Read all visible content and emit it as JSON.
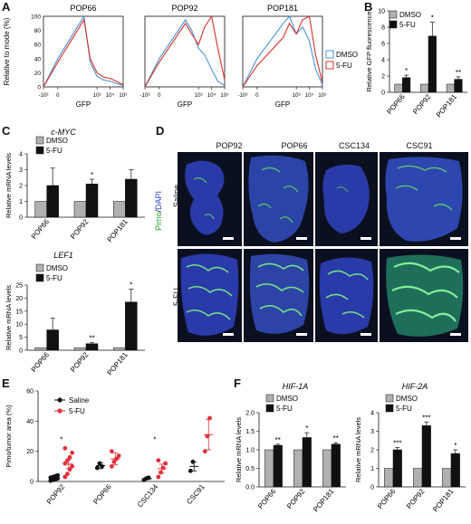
{
  "panels": {
    "A": {
      "letter": "A",
      "ylabel": "Relative to mode (%)",
      "xlabel": "GFP",
      "titles": [
        "POP66",
        "POP92",
        "POP181"
      ],
      "yticks": [
        "0",
        "20",
        "40",
        "60",
        "80",
        "100"
      ],
      "xticks": [
        "-10³",
        "0",
        "10³",
        "10⁴",
        "10⁵"
      ],
      "legend": [
        "DMSO",
        "5-FU"
      ]
    },
    "B": {
      "letter": "B",
      "legend": [
        "DMSO",
        "5-FU"
      ]
    },
    "C": {
      "letter": "C"
    },
    "D": {
      "letter": "D",
      "cols": [
        "POP92",
        "POP66",
        "CSC134",
        "CSC91"
      ],
      "rows": [
        "Saline",
        "5-FU"
      ],
      "side_label_1": "Pimo",
      "side_label_sep": "/",
      "side_label_2": "DAPI"
    },
    "E": {
      "letter": "E",
      "legend": [
        "Saline",
        "5-FU"
      ]
    },
    "F": {
      "letter": "F"
    }
  },
  "colors": {
    "dmso": "#b0b0b0",
    "fu": "#111111",
    "hist_dmso": "#4a90d9",
    "hist_fu": "#d9322b",
    "saline_dot": "#111111",
    "fu_dot": "#e0303c"
  },
  "chart_data": [
    {
      "id": "A",
      "type": "line",
      "title": "",
      "xlabel": "GFP",
      "ylabel": "Relative to mode (%)",
      "ylim": [
        0,
        100
      ],
      "subplots": [
        {
          "title": "POP66",
          "series": [
            {
              "name": "DMSO",
              "x": [
                -1000,
                0,
                100,
                300,
                1000,
                3000,
                10000,
                30000,
                100000
              ],
              "values": [
                0,
                40,
                100,
                35,
                15,
                10,
                8,
                5,
                2
              ]
            },
            {
              "name": "5-FU",
              "x": [
                -1000,
                0,
                100,
                300,
                1000,
                3000,
                10000,
                30000,
                100000
              ],
              "values": [
                0,
                35,
                95,
                40,
                20,
                14,
                12,
                8,
                3
              ]
            }
          ]
        },
        {
          "title": "POP92",
          "series": [
            {
              "name": "DMSO",
              "x": [
                -1000,
                0,
                100,
                300,
                1000,
                3000,
                10000,
                30000,
                100000
              ],
              "values": [
                0,
                40,
                95,
                80,
                55,
                45,
                25,
                8,
                2
              ]
            },
            {
              "name": "5-FU",
              "x": [
                -1000,
                0,
                100,
                300,
                1000,
                3000,
                10000,
                30000,
                100000
              ],
              "values": [
                0,
                35,
                90,
                75,
                60,
                85,
                100,
                55,
                10
              ]
            }
          ]
        },
        {
          "title": "POP181",
          "series": [
            {
              "name": "DMSO",
              "x": [
                -1000,
                0,
                100,
                300,
                1000,
                3000,
                10000,
                30000,
                100000
              ],
              "values": [
                0,
                40,
                90,
                100,
                75,
                85,
                65,
                25,
                3
              ]
            },
            {
              "name": "5-FU",
              "x": [
                -1000,
                0,
                100,
                300,
                1000,
                3000,
                10000,
                30000,
                100000
              ],
              "values": [
                0,
                30,
                70,
                90,
                75,
                95,
                100,
                45,
                6
              ]
            }
          ]
        }
      ],
      "legend": [
        "DMSO",
        "5-FU"
      ]
    },
    {
      "id": "B",
      "type": "bar",
      "ylabel": "Relative GFP fluorescence",
      "ylim": [
        0,
        10
      ],
      "yticks": [
        "0",
        "2",
        "4",
        "6",
        "8",
        "10"
      ],
      "categories": [
        "POP66",
        "POP92",
        "POP181"
      ],
      "series": [
        {
          "name": "DMSO",
          "values": [
            1,
            1,
            1
          ],
          "errors": [
            0,
            0,
            0
          ]
        },
        {
          "name": "5-FU",
          "values": [
            1.8,
            6.9,
            1.6
          ],
          "errors": [
            0.3,
            1.7,
            0.3
          ]
        }
      ],
      "significance": [
        "*",
        "*",
        "**"
      ]
    },
    {
      "id": "C-top",
      "type": "bar",
      "title": "c-MYC",
      "ylabel": "Relative mRNA levels",
      "ylim": [
        0,
        4
      ],
      "yticks": [
        "0",
        "1",
        "2",
        "3",
        "4"
      ],
      "categories": [
        "POP66",
        "POP92",
        "POP181"
      ],
      "series": [
        {
          "name": "DMSO",
          "values": [
            1,
            1,
            1
          ],
          "errors": [
            0,
            0,
            0
          ]
        },
        {
          "name": "5-FU",
          "values": [
            2.0,
            2.1,
            2.4
          ],
          "errors": [
            1.1,
            0.3,
            0.6
          ]
        }
      ],
      "significance": [
        "",
        "*",
        ""
      ]
    },
    {
      "id": "C-bottom",
      "type": "bar",
      "title": "LEF1",
      "ylabel": "Relative mRNA levels",
      "ylim": [
        0,
        25
      ],
      "yticks": [
        "0",
        "5",
        "10",
        "15",
        "20",
        "25"
      ],
      "categories": [
        "POP66",
        "POP92",
        "POP181"
      ],
      "series": [
        {
          "name": "DMSO",
          "values": [
            1,
            1,
            1
          ],
          "errors": [
            0,
            0,
            0
          ]
        },
        {
          "name": "5-FU",
          "values": [
            7.8,
            2.5,
            18.5
          ],
          "errors": [
            4.5,
            0.4,
            5
          ]
        }
      ],
      "significance": [
        "",
        "**",
        "*"
      ]
    },
    {
      "id": "E",
      "type": "scatter",
      "ylabel": "Pimo/tumor area (%)",
      "ylim": [
        0,
        60
      ],
      "yticks": [
        "0",
        "20",
        "40",
        "60"
      ],
      "categories": [
        "POP92",
        "POP66",
        "CSC134",
        "CSC91"
      ],
      "series": [
        {
          "name": "Saline",
          "groups": [
            [
              0.5,
              1,
              1.5,
              2,
              2.5,
              3,
              3.5,
              4
            ],
            [
              9,
              12,
              10
            ],
            [
              1,
              2,
              2.5
            ],
            [
              7,
              13
            ]
          ],
          "means": [
            2,
            10.5,
            1.8,
            10
          ],
          "errors": [
            0.5,
            2,
            0.5,
            3
          ]
        },
        {
          "name": "5-FU",
          "groups": [
            [
              3,
              5,
              8,
              10,
              12,
              14,
              16,
              19,
              22
            ],
            [
              10,
              13,
              15,
              17,
              20
            ],
            [
              3,
              6,
              9,
              12,
              14
            ],
            [
              20,
              30,
              42
            ]
          ],
          "means": [
            11.5,
            15,
            8.5,
            31
          ],
          "errors": [
            3,
            4,
            3,
            10
          ]
        }
      ],
      "significance": [
        "*",
        "",
        "*",
        ""
      ]
    },
    {
      "id": "F-left",
      "type": "bar",
      "title": "HIF-1A",
      "ylabel": "Relative mRNA levels",
      "ylim": [
        0,
        2
      ],
      "yticks": [
        "0.0",
        "0.5",
        "1.0",
        "1.5",
        "2.0"
      ],
      "categories": [
        "POP66",
        "POP92",
        "POP181"
      ],
      "series": [
        {
          "name": "DMSO",
          "values": [
            1,
            1,
            1
          ],
          "errors": [
            0,
            0,
            0
          ]
        },
        {
          "name": "5-FU",
          "values": [
            1.12,
            1.33,
            1.15
          ],
          "errors": [
            0.03,
            0.13,
            0.04
          ]
        }
      ],
      "significance": [
        "**",
        "*",
        "**"
      ]
    },
    {
      "id": "F-right",
      "type": "bar",
      "title": "HIF-2A",
      "ylabel": "Relative mRNA levels",
      "ylim": [
        0,
        4
      ],
      "yticks": [
        "0",
        "1",
        "2",
        "3",
        "4"
      ],
      "categories": [
        "POP66",
        "POP92",
        "POP181"
      ],
      "series": [
        {
          "name": "DMSO",
          "values": [
            1,
            1,
            1
          ],
          "errors": [
            0,
            0,
            0
          ]
        },
        {
          "name": "5-FU",
          "values": [
            2.0,
            3.3,
            1.8
          ],
          "errors": [
            0.12,
            0.2,
            0.2
          ]
        }
      ],
      "significance": [
        "***",
        "***",
        "*"
      ]
    }
  ]
}
